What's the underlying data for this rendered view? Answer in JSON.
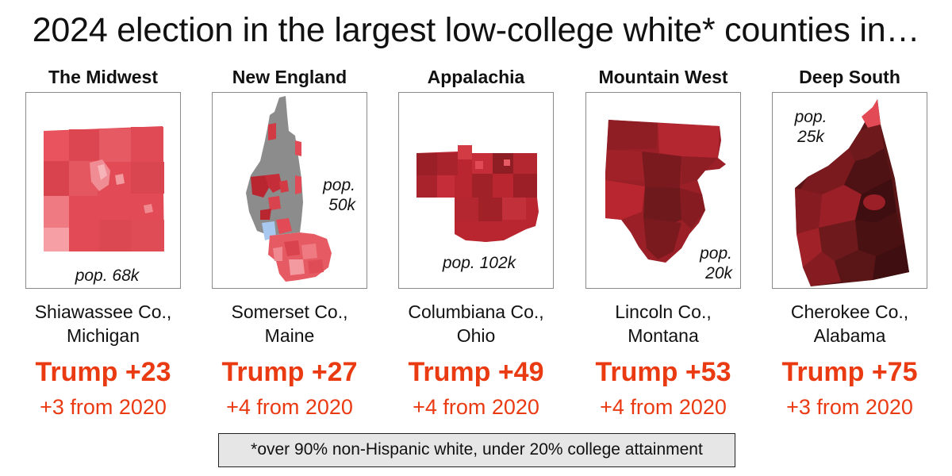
{
  "title": "2024 election in the largest low-college white* counties in…",
  "footnote": "*over 90% non-Hispanic white, under 20% college attainment",
  "colors": {
    "accent": "#ea3a12",
    "light_red": "#f4a6a6",
    "medium_red": "#e24b55",
    "dark_red": "#6e1a1c",
    "gray_no_data": "#8c8c8c",
    "blue": "#a9c8f0"
  },
  "counties": [
    {
      "region": "The Midwest",
      "county_line1": "Shiawassee Co.,",
      "county_line2": "Michigan",
      "population_line1": "pop. 68k",
      "population_line2": "",
      "margin": "Trump +23",
      "change": "+3 from 2020"
    },
    {
      "region": "New England",
      "county_line1": "Somerset Co.,",
      "county_line2": "Maine",
      "population_line1": "pop.",
      "population_line2": "50k",
      "margin": "Trump +27",
      "change": "+4 from 2020"
    },
    {
      "region": "Appalachia",
      "county_line1": "Columbiana Co.,",
      "county_line2": "Ohio",
      "population_line1": "pop. 102k",
      "population_line2": "",
      "margin": "Trump +49",
      "change": "+4 from 2020"
    },
    {
      "region": "Mountain West",
      "county_line1": "Lincoln Co.,",
      "county_line2": "Montana",
      "population_line1": "pop.",
      "population_line2": "20k",
      "margin": "Trump +53",
      "change": "+4 from 2020"
    },
    {
      "region": "Deep South",
      "county_line1": "Cherokee Co.,",
      "county_line2": "Alabama",
      "population_line1": "pop.",
      "population_line2": "25k",
      "margin": "Trump +75",
      "change": "+3 from 2020"
    }
  ]
}
